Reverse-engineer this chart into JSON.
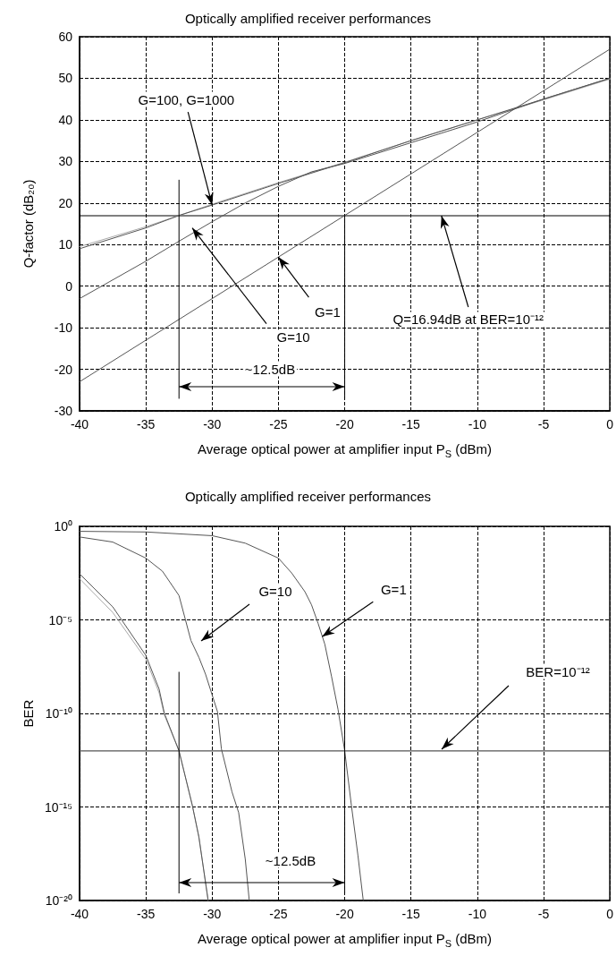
{
  "chart_data": [
    {
      "type": "line",
      "title": "Optically amplified receiver performances",
      "xlabel": "Average optical power at amplifier input P$_{S}$ (dBm)",
      "ylabel": "Q-factor (dB₂₀)",
      "xlim": [
        -40,
        0
      ],
      "ylim": [
        -30,
        60
      ],
      "xticks": [
        -40,
        -35,
        -30,
        -25,
        -20,
        -15,
        -10,
        -5,
        0
      ],
      "yticks": [
        -30,
        -20,
        -10,
        0,
        10,
        20,
        30,
        40,
        50,
        60
      ],
      "grid": true,
      "marker": "none",
      "line_style": "solid",
      "series": [
        {
          "color": "#aaaaaa",
          "x": [
            -40,
            -35,
            -32.5,
            -30,
            -25,
            -20,
            -15,
            -10,
            -5,
            0
          ],
          "values": [
            9.5,
            14.3,
            17,
            19.7,
            24.9,
            29.8,
            35,
            40,
            44.8,
            49.8
          ]
        },
        {
          "color": "#555555",
          "x": [
            -40,
            -35,
            -32.5,
            -30,
            -25,
            -20,
            -15,
            -10,
            -5,
            0
          ],
          "values": [
            9,
            14,
            17,
            19.5,
            24.7,
            29.7,
            35,
            40,
            45,
            50
          ]
        },
        {
          "color": "#555555",
          "x": [
            -40,
            -35,
            -32.5,
            -30,
            -27.5,
            -25,
            -22.5,
            -20,
            -15,
            -10,
            -5,
            0
          ],
          "values": [
            -3,
            6,
            10.8,
            15.5,
            20,
            24,
            27.5,
            29.5,
            34.5,
            39.5,
            45,
            50
          ]
        },
        {
          "color": "#555555",
          "x": [
            -40,
            -20,
            0
          ],
          "values": [
            -23,
            17,
            57
          ]
        },
        {
          "color": "#000000",
          "x": [
            -32.5,
            -32.5
          ],
          "values": [
            -27,
            25.5
          ]
        },
        {
          "color": "#000000",
          "x": [
            -20,
            -20
          ],
          "values": [
            -27,
            17
          ]
        }
      ],
      "ref_lines": [
        {
          "axis": "y",
          "value": 16.94,
          "color": "#000000"
        }
      ],
      "annotations": [
        {
          "text": "G=100, G=1000",
          "x": -30,
          "y": 19.5
        },
        {
          "text": "G=10",
          "x": -31.5,
          "y": 14
        },
        {
          "text": "G=1",
          "x": -25,
          "y": 7
        },
        {
          "text": "Q=16.94dB at BER=10⁻¹²",
          "x": -12.7,
          "y": 16.94
        },
        "~12.5dB"
      ]
    },
    {
      "type": "line",
      "title": "Optically amplified receiver performances",
      "xlabel": "Average optical power at amplifier input P$_{S}$ (dBm)",
      "ylabel": "BER",
      "xlim": [
        -40,
        0
      ],
      "ylim": [
        1e-20,
        1
      ],
      "log": "y",
      "xticks": [
        -40,
        -35,
        -30,
        -25,
        -20,
        -15,
        -10,
        -5,
        0
      ],
      "yticks": [
        {
          "value": 1e-20,
          "label": "10⁻²⁰"
        },
        {
          "value": 1e-15,
          "label": "10⁻¹⁵"
        },
        {
          "value": 1e-10,
          "label": "10⁻¹⁰"
        },
        {
          "value": 1e-05,
          "label": "10⁻⁵"
        },
        {
          "value": 1,
          "label": "10⁰"
        }
      ],
      "grid": true,
      "marker": "none",
      "line_style": "solid",
      "series": [
        {
          "color": "#aaaaaa",
          "x": [
            -40,
            -37.5,
            -35,
            -34,
            -33.6,
            -32.5,
            -31.5,
            -31,
            -30.3
          ],
          "values": [
            0.0016,
            2.5e-05,
            7.9e-08,
            1.26e-09,
            8e-11,
            1e-12,
            1.26e-15,
            2.5e-17,
            1e-20
          ]
        },
        {
          "color": "#555555",
          "x": [
            -40,
            -37.5,
            -35,
            -34,
            -33.6,
            -32.5,
            -31.5,
            -31,
            -30.3
          ],
          "values": [
            0.0029,
            5e-05,
            1.26e-07,
            2e-09,
            1e-10,
            1e-12,
            1.26e-15,
            2.5e-17,
            1e-20
          ]
        },
        {
          "color": "#555555",
          "x": [
            -40,
            -37.5,
            -35,
            -33.75,
            -32.5,
            -31.6,
            -31,
            -30.5,
            -29.6,
            -29.3,
            -28.5,
            -28,
            -27.5,
            -27.2
          ],
          "values": [
            0.27,
            0.145,
            0.02,
            0.004,
            0.0002,
            7.9e-07,
            1e-07,
            1.26e-08,
            1.26e-10,
            1.26e-12,
            6.3e-15,
            5e-16,
            1.6e-18,
            1e-20
          ]
        },
        {
          "color": "#555555",
          "x": [
            -40,
            -35,
            -30,
            -27.5,
            -25,
            -24,
            -23,
            -22.5,
            -22,
            -21.5,
            -21,
            -20.5,
            -20,
            -19.5,
            -19,
            -18.6
          ],
          "values": [
            0.54,
            0.5,
            0.316,
            0.126,
            0.02,
            0.0032,
            0.00032,
            6.3e-05,
            6.3e-06,
            5e-07,
            1e-08,
            1.6e-10,
            1e-12,
            1.3e-15,
            2.5e-18,
            1e-20
          ]
        },
        {
          "color": "#000000",
          "x": [
            -32.5,
            -32.5
          ],
          "values": [
            2.5e-20,
            1.6e-08
          ]
        },
        {
          "color": "#000000",
          "x": [
            -20,
            -20
          ],
          "values": [
            2.5e-20,
            1e-08
          ]
        }
      ],
      "ref_lines": [
        {
          "axis": "y",
          "value": 1e-12,
          "color": "#555555"
        }
      ],
      "annotations": [
        "G=10",
        {
          "text": "G=1",
          "x": -21.7,
          "y": 1.26e-06
        },
        "BER=10⁻¹²",
        "~12.5dB"
      ]
    }
  ]
}
